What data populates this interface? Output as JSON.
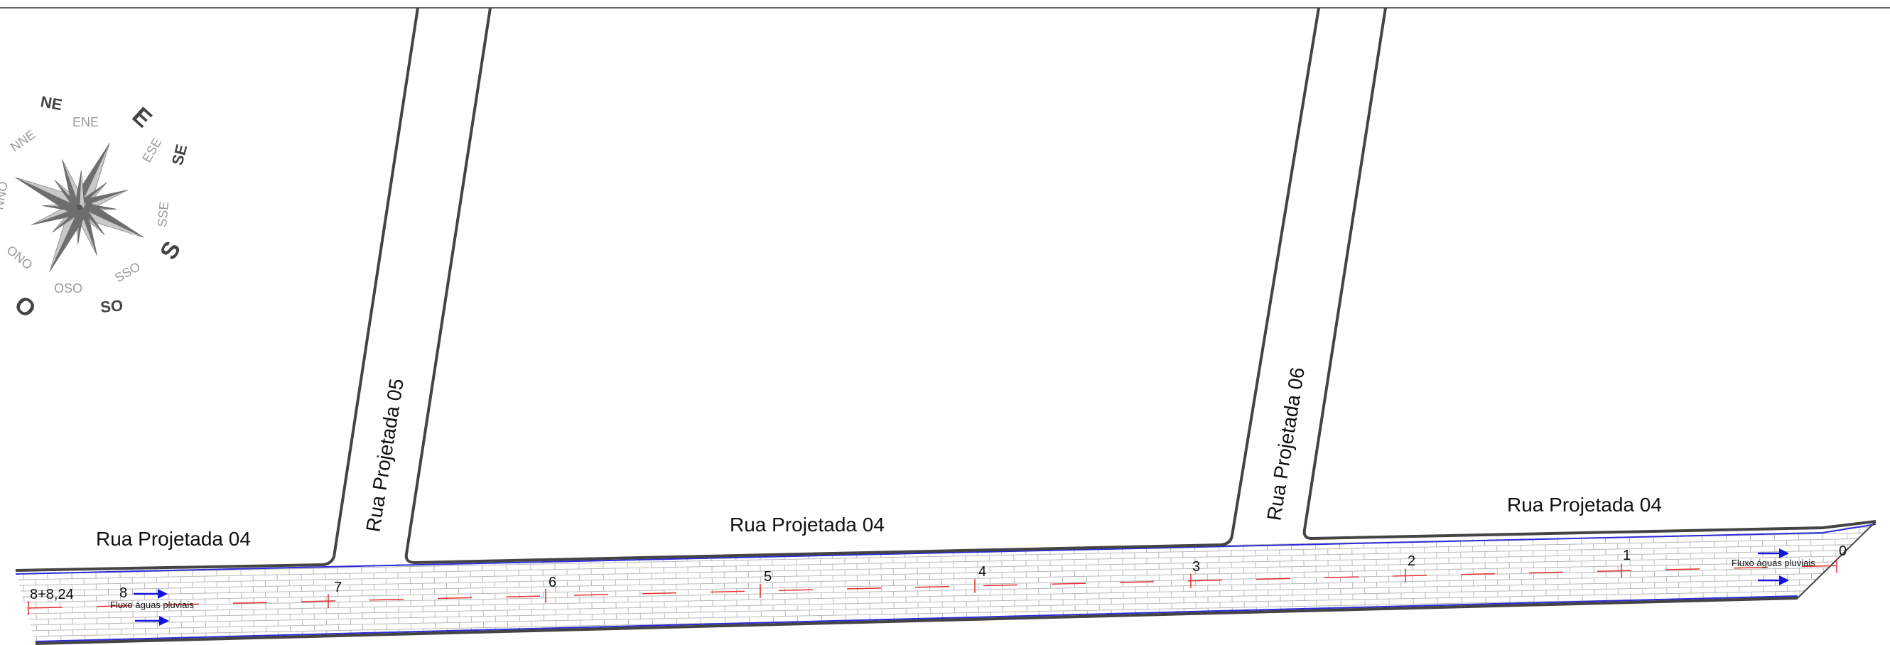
{
  "streets": {
    "main_left": "Rua Projetada 04",
    "main_center": "Rua Projetada 04",
    "main_right": "Rua Projetada 04",
    "cross_05": "Rua Projetada 05",
    "cross_06": "Rua Projetada 06"
  },
  "stations": [
    "0",
    "1",
    "2",
    "3",
    "4",
    "5",
    "6",
    "7",
    "8"
  ],
  "end_station": "8+8,24",
  "flow": {
    "label_left": "Fluxo águas pluviais",
    "label_right": "Fluxo águas pluviais"
  },
  "compass": {
    "cardinal": [
      "E",
      "S",
      "O"
    ],
    "intercardinal": [
      "NE",
      "SE",
      "SO"
    ],
    "minor": [
      "ENE",
      "ESE",
      "SSE",
      "SSO",
      "OSO",
      "ONO",
      "NNE",
      "NNO"
    ]
  },
  "colors": {
    "road_edge": "#444444",
    "paving_grid": "#b8b8b8",
    "curb_line": "#2b2bd6",
    "flow_arrow": "#1515e0",
    "profile_mark": "#e53030",
    "compass_dark": "#6e6e6e",
    "compass_light": "#c8c8c8"
  }
}
